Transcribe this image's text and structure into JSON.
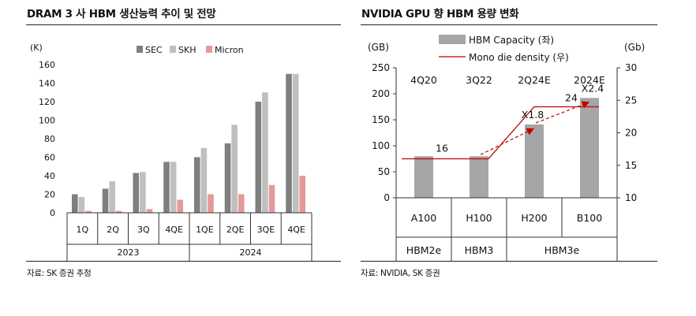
{
  "left_panel": {
    "title": "DRAM 3 사 HBM 생산능력 추이 및 전망",
    "source": "자료: SK 증권 추정"
  },
  "right_panel": {
    "title": "NVIDIA GPU 향 HBM 용량 변화",
    "source": "자료: NVIDIA, SK 증권"
  },
  "colors": {
    "sec": "#7f7f7f",
    "skh": "#bfbfbf",
    "micron": "#e39a9a",
    "hbm_capacity": "#a6a6a6",
    "mono_density": "#c00000"
  },
  "chart_data": [
    {
      "type": "bar",
      "ylabel": "(K)",
      "ylim": [
        0,
        160
      ],
      "yticks": [
        0,
        20,
        40,
        60,
        80,
        100,
        120,
        140,
        160
      ],
      "categories": [
        "1Q",
        "2Q",
        "3Q",
        "4QE",
        "1QE",
        "2QE",
        "3QE",
        "4QE"
      ],
      "groups": [
        {
          "label": "2023",
          "span": 4
        },
        {
          "label": "2024",
          "span": 4
        }
      ],
      "series": [
        {
          "name": "SEC",
          "values": [
            20,
            26,
            43,
            55,
            60,
            75,
            120,
            150
          ]
        },
        {
          "name": "SKH",
          "values": [
            17,
            34,
            44,
            55,
            70,
            95,
            130,
            150
          ]
        },
        {
          "name": "Micron",
          "values": [
            2,
            2,
            4,
            14,
            20,
            20,
            30,
            40
          ]
        }
      ],
      "legend": "top-right"
    },
    {
      "type": "bar",
      "ylabel": "(GB)",
      "y2label": "(Gb)",
      "ylim": [
        0,
        250
      ],
      "y2lim": [
        10,
        30
      ],
      "yticks": [
        0,
        50,
        100,
        150,
        200,
        250
      ],
      "y2ticks": [
        10,
        15,
        20,
        25,
        30
      ],
      "categories": [
        "A100",
        "H100",
        "H200",
        "B100"
      ],
      "period_labels": [
        "4Q20",
        "3Q22",
        "2Q24E",
        "2024E"
      ],
      "hbm_groups": [
        {
          "label": "HBM2e",
          "span": 1
        },
        {
          "label": "HBM3",
          "span": 1
        },
        {
          "label": "HBM3e",
          "span": 2
        }
      ],
      "series": [
        {
          "name": "HBM Capacity (좌)",
          "type": "bar",
          "axis": "left",
          "values": [
            80,
            80,
            141,
            192
          ]
        },
        {
          "name": "Mono die density (우)",
          "type": "line",
          "axis": "right",
          "values": [
            16,
            16,
            24,
            24
          ]
        }
      ],
      "data_labels": [
        "16",
        "24"
      ],
      "growth_arrows": [
        {
          "label": "X1.8",
          "from": 80,
          "to": 141
        },
        {
          "label": "X2.4",
          "from": 80,
          "to": 192
        }
      ],
      "legend": "top-center"
    }
  ]
}
